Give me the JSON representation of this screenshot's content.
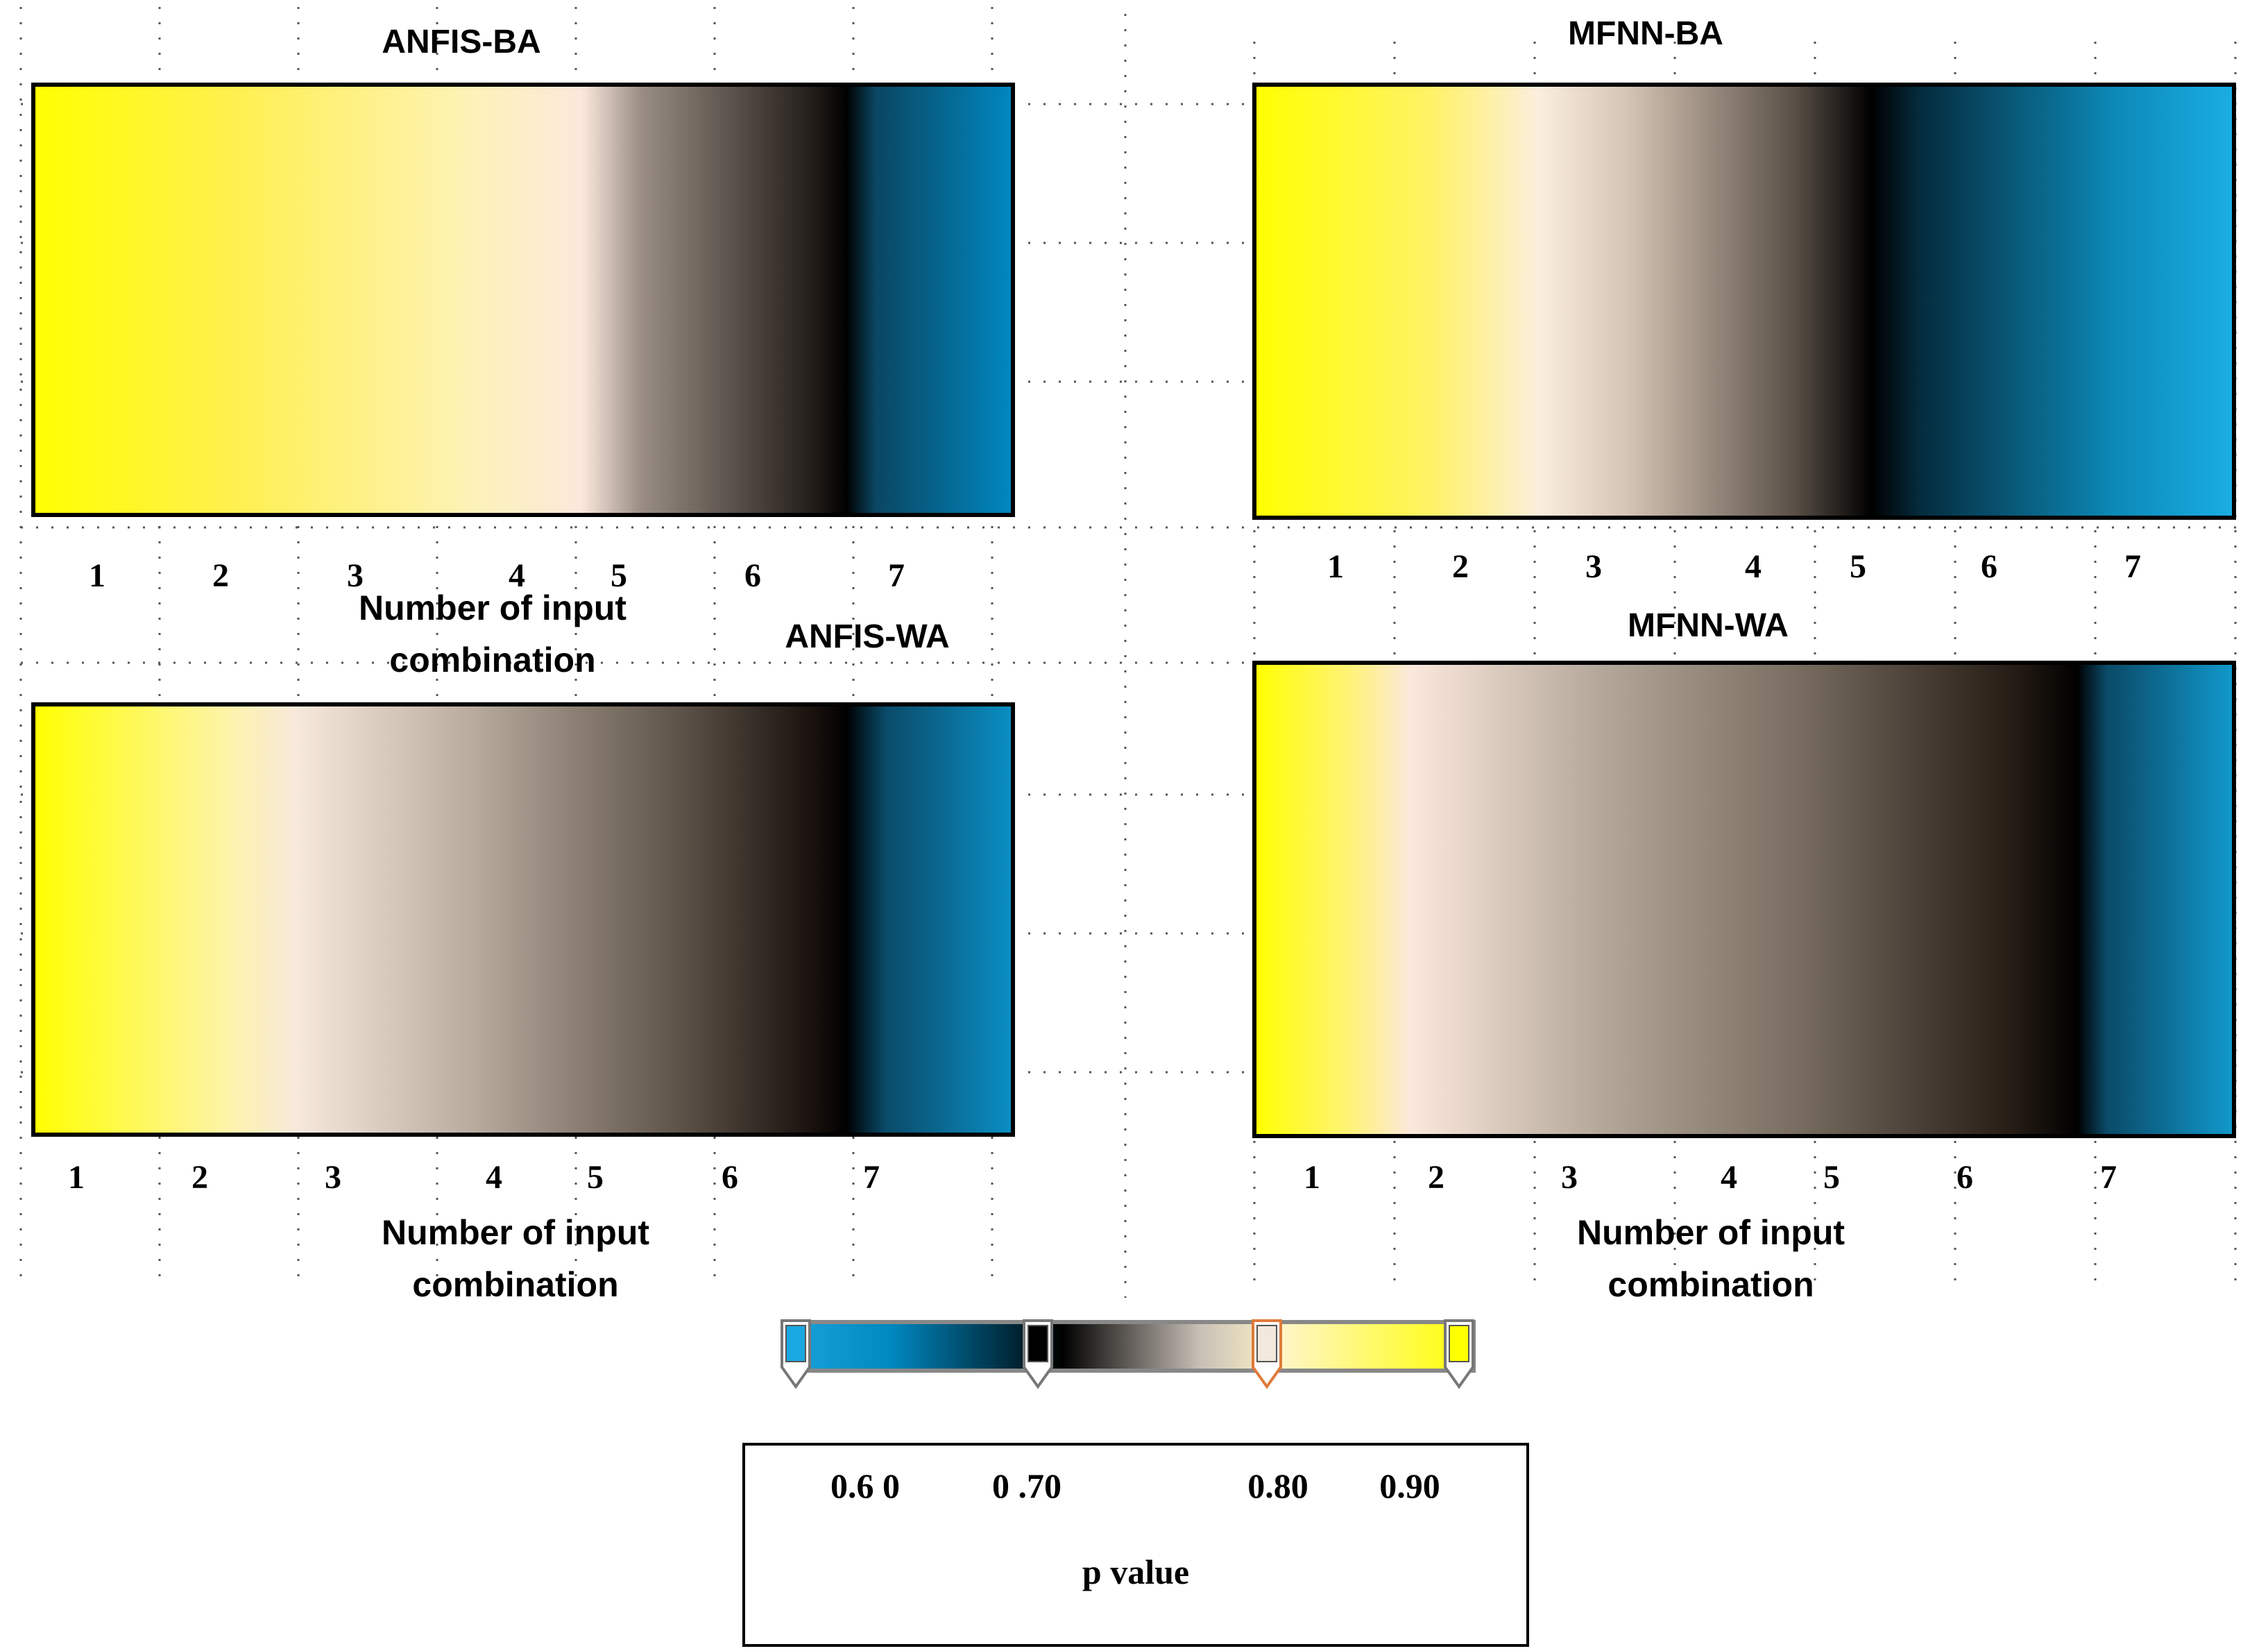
{
  "chart_data": [
    {
      "type": "heatmap",
      "title": "ANFIS-BA",
      "xlabel_lines": [
        "Number of input",
        "combination"
      ],
      "categories": [
        "1",
        "2",
        "3",
        "4",
        "5",
        "6",
        "7"
      ],
      "gradient_colors": [
        "#ffff00",
        "#fff04d",
        "#fdf2b8",
        "#fbe8dc",
        "#9a8e85",
        "#201a16",
        "#000000",
        "#0a4662",
        "#0088c0"
      ],
      "gradient_stops": [
        0,
        0.2,
        0.45,
        0.56,
        0.62,
        0.8,
        0.83,
        0.86,
        1.0
      ]
    },
    {
      "type": "heatmap",
      "title": "MFNN-BA",
      "xlabel_lines": [],
      "categories": [
        "1",
        "2",
        "3",
        "4",
        "5",
        "6",
        "7"
      ],
      "gradient_colors": [
        "#ffff00",
        "#fff266",
        "#fbeedd",
        "#d6c5b5",
        "#5b5148",
        "#000000",
        "#052c3e",
        "#0c8ab8",
        "#1aaee5"
      ],
      "gradient_stops": [
        0,
        0.18,
        0.29,
        0.38,
        0.55,
        0.63,
        0.68,
        0.88,
        1.0
      ]
    },
    {
      "type": "heatmap",
      "title": "ANFIS-WA",
      "xlabel_lines": [
        "Number of input",
        "combination"
      ],
      "categories": [
        "1",
        "2",
        "3",
        "4",
        "5",
        "6",
        "7"
      ],
      "gradient_colors": [
        "#ffff00",
        "#fdf3aa",
        "#f7e8dc",
        "#b8ab9e",
        "#5e5349",
        "#160f0b",
        "#000000",
        "#0a4b69",
        "#0a8fc4"
      ],
      "gradient_stops": [
        0,
        0.2,
        0.27,
        0.45,
        0.66,
        0.8,
        0.83,
        0.87,
        1.0
      ]
    },
    {
      "type": "heatmap",
      "title": "MFNN-WA",
      "xlabel_lines": [
        "Number of input",
        "combination"
      ],
      "categories": [
        "1",
        "2",
        "3",
        "4",
        "5",
        "6",
        "7"
      ],
      "gradient_colors": [
        "#ffff00",
        "#fff27a",
        "#fbe8dc",
        "#b5a99b",
        "#7a6e62",
        "#231a13",
        "#000000",
        "#0a4a68",
        "#1199cc"
      ],
      "gradient_stops": [
        0,
        0.1,
        0.16,
        0.35,
        0.55,
        0.78,
        0.84,
        0.87,
        1.0
      ]
    }
  ],
  "colorbar": {
    "colors": [
      "#1aa2dc",
      "#0088c0",
      "#000000",
      "#c8bfb6",
      "#fff5c8",
      "#ffff00"
    ],
    "stops": [
      0,
      0.15,
      0.4,
      0.6,
      0.72,
      1.0
    ],
    "handle_colors": [
      "#1aa8e0",
      "#000000",
      "#f2e8dc",
      "#ffff00"
    ],
    "tick_labels": [
      "0.6 0",
      "0 .70",
      "0.80",
      "0.90"
    ],
    "label": "p value"
  }
}
